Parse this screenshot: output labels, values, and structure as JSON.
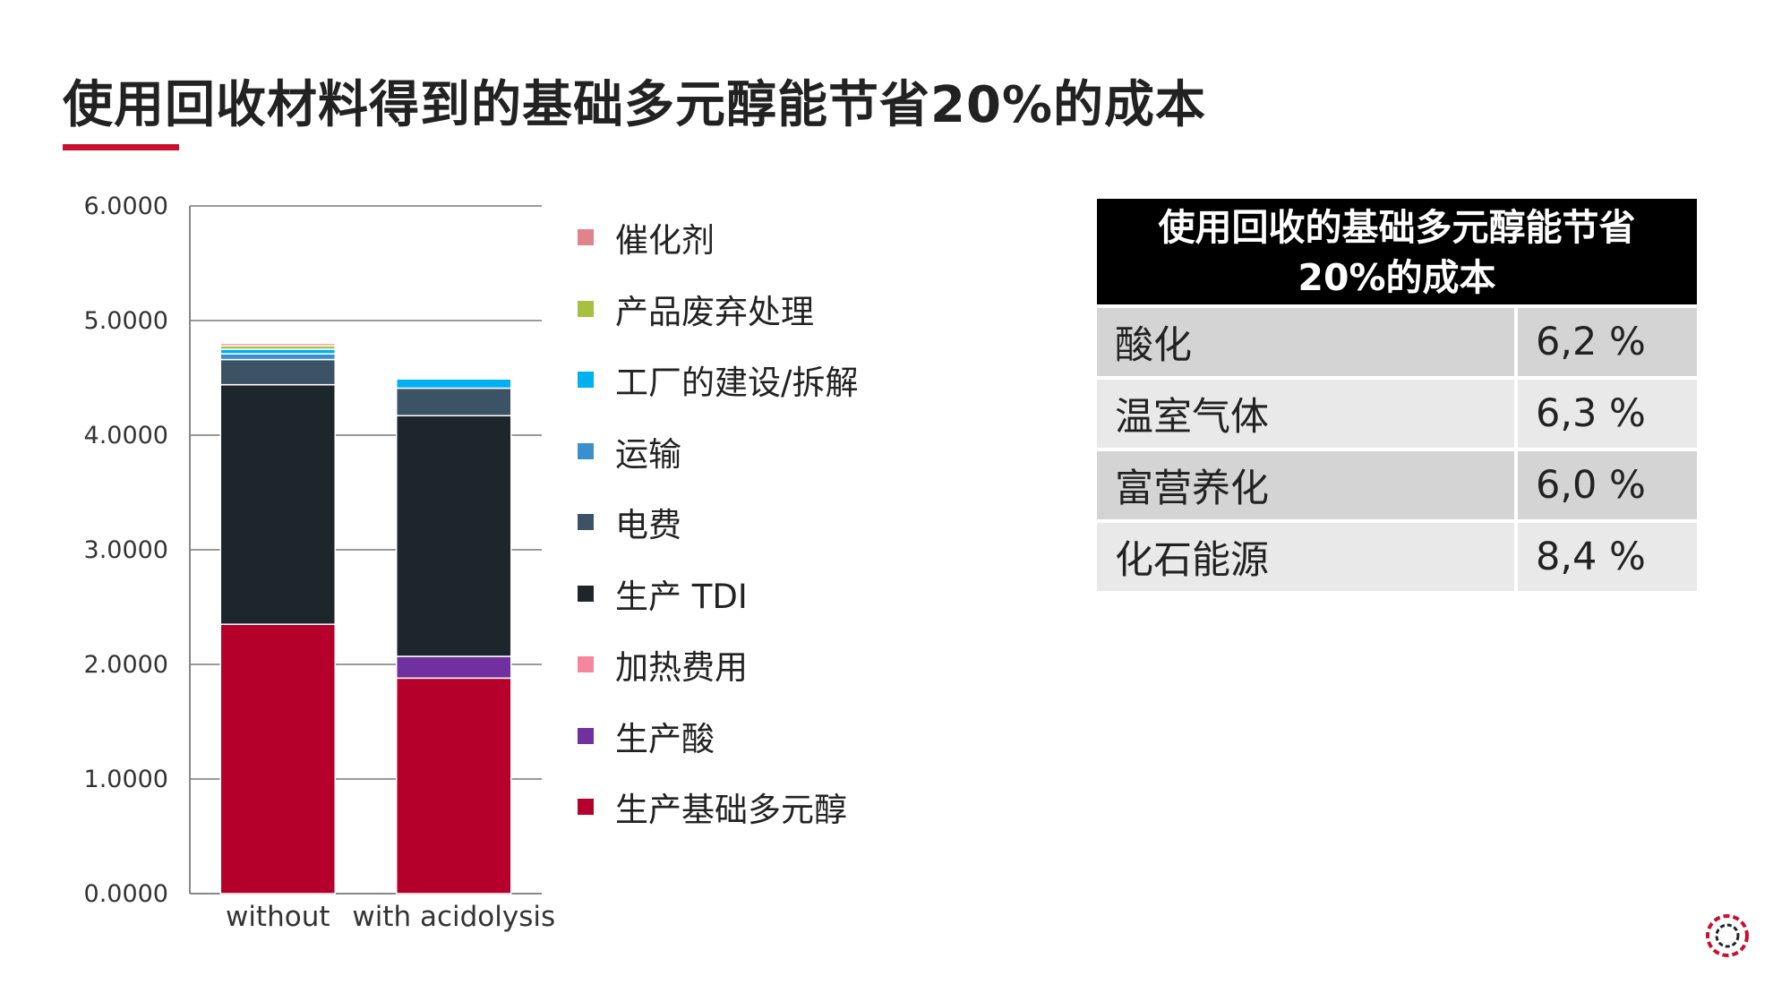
{
  "slide": {
    "title": "使用回收材料得到的基础多元醇能节省20%的成本",
    "accent_color": "#c8102e"
  },
  "chart_data": {
    "type": "bar",
    "stacked": true,
    "categories": [
      "without",
      "with acidolysis"
    ],
    "ylim": [
      0,
      6
    ],
    "yticks": [
      "0.0000",
      "1.0000",
      "2.0000",
      "3.0000",
      "4.0000",
      "5.0000",
      "6.0000"
    ],
    "grid": true,
    "legend_position": "right",
    "series": [
      {
        "name": "生产基础多元醇",
        "color": "#b5002b",
        "values": [
          2.35,
          1.88
        ]
      },
      {
        "name": "生产酸",
        "color": "#7030a0",
        "values": [
          0,
          0.19
        ]
      },
      {
        "name": "加热费用",
        "color": "#f4879c",
        "values": [
          0,
          0
        ]
      },
      {
        "name": "生产 TDI",
        "color": "#1d262b",
        "values": [
          2.09,
          2.1
        ]
      },
      {
        "name": "电费",
        "color": "#3c5366",
        "values": [
          0.22,
          0.24
        ]
      },
      {
        "name": "运输",
        "color": "#3a8fcf",
        "values": [
          0.05,
          0
        ]
      },
      {
        "name": "工厂的建设/拆解",
        "color": "#00b0f0",
        "values": [
          0.04,
          0.08
        ]
      },
      {
        "name": "产品废弃处理",
        "color": "#a6c13f",
        "values": [
          0.03,
          0
        ]
      },
      {
        "name": "催化剂",
        "color": "#e0848c",
        "values": [
          0.02,
          0
        ]
      }
    ],
    "legend_order": [
      "催化剂",
      "产品废弃处理",
      "工厂的建设/拆解",
      "运输",
      "电费",
      "生产 TDI",
      "加热费用",
      "生产酸",
      "生产基础多元醇"
    ]
  },
  "table": {
    "header_line1": "使用回收的基础多元醇能节省",
    "header_line2": "20%的成本",
    "rows": [
      {
        "label": "酸化",
        "value": "6,2 %"
      },
      {
        "label": "温室气体",
        "value": "6,3 %"
      },
      {
        "label": "富营养化",
        "value": "6,0 %"
      },
      {
        "label": "化石能源",
        "value": "8,4 %"
      }
    ]
  },
  "logo": {
    "icon": "circular-dotted-ring-logo",
    "color": "#c8102e"
  }
}
